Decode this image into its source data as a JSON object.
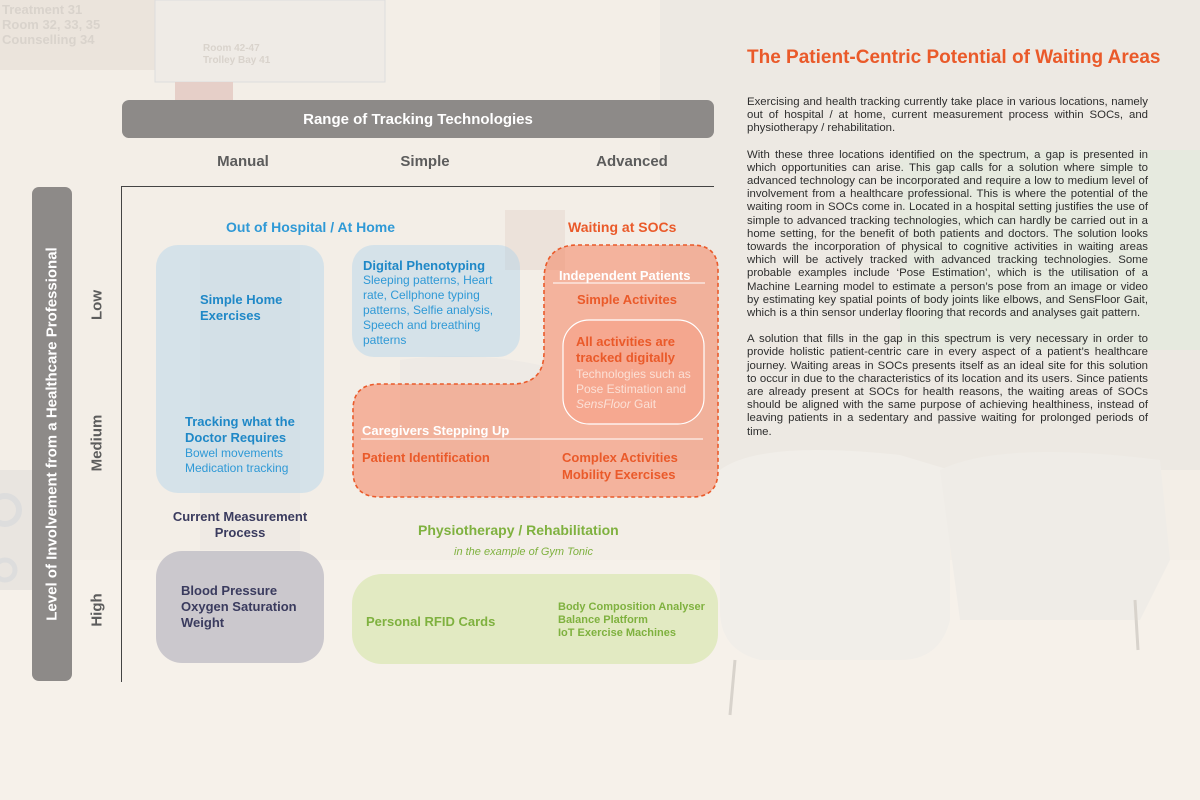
{
  "header_bar": "Range of Tracking Technologies",
  "side_bar": "Level of Involvement from a Healthcare Professional",
  "columns": [
    "Manual",
    "Simple",
    "Advanced"
  ],
  "rows": [
    "Low",
    "Medium",
    "High"
  ],
  "zones": {
    "home": "Out of Hospital / At Home",
    "socs": "Waiting at SOCs",
    "current": "Current Measurement Process",
    "physio": "Physiotherapy / Rehabilitation",
    "physio_note": "in the example of Gym Tonic"
  },
  "items": {
    "simple_home_exercises": "Simple Home Exercises",
    "digital_phenotyping_title": "Digital Phenotyping",
    "digital_phenotyping_desc": "Sleeping patterns, Heart rate, Cellphone typing patterns, Selfie analysis, Speech and breathing patterns",
    "tracking_doctor_title": "Tracking what the Doctor Requires",
    "tracking_doctor_desc_1": "Bowel movements",
    "tracking_doctor_desc_2": "Medication tracking",
    "independent_patients": "Independent Patients",
    "simple_activities": "Simple Activites",
    "all_tracked_title": "All activities are tracked digitally",
    "all_tracked_desc_1": "Technologies such as Pose Estimation and ",
    "all_tracked_desc_italic": "SensFloor",
    "all_tracked_desc_2": " Gait",
    "caregivers": "Caregivers Stepping Up",
    "patient_identification": "Patient Identification",
    "complex_activities": "Complex Activities",
    "mobility_exercises": "Mobility Exercises",
    "vitals_1": "Blood Pressure",
    "vitals_2": "Oxygen Saturation",
    "vitals_3": "Weight",
    "rfid": "Personal RFID Cards",
    "body_comp": "Body Composition Analyser",
    "balance": "Balance Platform",
    "iot": "IoT Exercise Machines"
  },
  "signage": {
    "line1": "Treatment 31",
    "line2": "Room 32, 33, 35",
    "line3": "Counselling 34",
    "line4": "Room 42-47",
    "line5": "Trolley Bay 41",
    "line6": "47"
  },
  "article": {
    "title": "The Patient-Centric Potential of Waiting Areas",
    "p1": "Exercising and health tracking currently take place in various locations, namely out of hospital / at home, current measurement process within SOCs, and physiotherapy / rehabilitation.",
    "p2": "With these three locations identified on the spectrum, a gap is presented in which opportunities can arise. This gap calls for a solution where simple to advanced technology can be incorporated and require a low to medium level of involvement from a healthcare professional. This is where the potential of the waiting room in SOCs come in. Located in a hospital setting justifies the use of simple to advanced tracking technologies, which can hardly be carried out in a home setting, for the benefit of both patients and doctors. The solution looks towards the incorporation of physical to cognitive activities in waiting areas which will be actively tracked with advanced tracking technologies. Some probable examples include ‘Pose Estimation’, which is the utilisation of a Machine Learning model to estimate a person’s pose from an image or video by estimating key spatial points of body joints like elbows, and SensFloor Gait, which is a thin sensor underlay flooring that records and analyses gait pattern.",
    "p3": "A solution that fills in the gap in this spectrum is very necessary in order to provide holistic patient-centric care in every aspect of a patient’s healthcare journey. Waiting areas in SOCs presents itself as an ideal site for this solution to occur in due to the characteristics of its location and its users. Since patients are already present at SOCs for health reasons, the waiting areas of SOCs should be aligned with the same purpose of achieving healthiness, instead of leaving patients in a sedentary and passive waiting for prolonged periods of time."
  },
  "colors": {
    "orange": "#ea5a2a",
    "blue": "#2f99d6",
    "navy": "#3a3b5e",
    "green": "#7fb13f",
    "grey_bar": "#8d8a88"
  }
}
